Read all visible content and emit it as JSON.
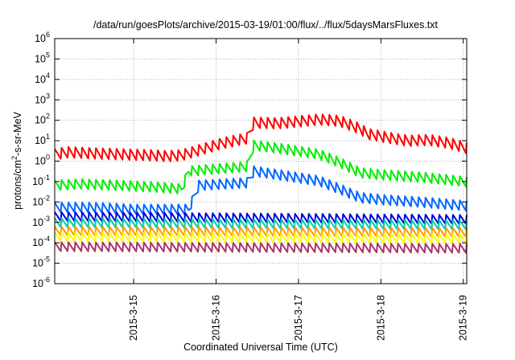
{
  "chart_data": {
    "type": "line",
    "title": "/data/run/goesPlots/archive/2015-03-19/01:00/flux/../flux/5daysMarsFluxes.txt",
    "xlabel": "Coordinated Universal Time (UTC)",
    "ylabel": {
      "prefix": "protons/cm",
      "sup": "2",
      "suffix": "-s-sr-MeV"
    },
    "y_scale": "log",
    "ylim": [
      1e-06,
      1000000.0
    ],
    "y_ticks": [
      {
        "value": 1e-06,
        "base": "10",
        "exp": "-6"
      },
      {
        "value": 1e-05,
        "base": "10",
        "exp": "-5"
      },
      {
        "value": 0.0001,
        "base": "10",
        "exp": "-4"
      },
      {
        "value": 0.001,
        "base": "10",
        "exp": "-3"
      },
      {
        "value": 0.01,
        "base": "10",
        "exp": "-2"
      },
      {
        "value": 0.1,
        "base": "10",
        "exp": "-1"
      },
      {
        "value": 1,
        "base": "10",
        "exp": "0"
      },
      {
        "value": 10,
        "base": "10",
        "exp": "1"
      },
      {
        "value": 100,
        "base": "10",
        "exp": "2"
      },
      {
        "value": 1000,
        "base": "10",
        "exp": "3"
      },
      {
        "value": 10000,
        "base": "10",
        "exp": "4"
      },
      {
        "value": 100000,
        "base": "10",
        "exp": "5"
      },
      {
        "value": 1000000,
        "base": "10",
        "exp": "6"
      }
    ],
    "xlim": [
      "2015-03-14T01:00",
      "2015-03-19T01:00"
    ],
    "x_ticks": [
      {
        "value": "2015-03-15T00:00",
        "label": "2015-3-15"
      },
      {
        "value": "2015-03-16T00:00",
        "label": "2015-3-16"
      },
      {
        "value": "2015-03-17T00:00",
        "label": "2015-3-17"
      },
      {
        "value": "2015-03-18T00:00",
        "label": "2015-3-18"
      },
      {
        "value": "2015-03-19T00:00",
        "label": "2015-3-19"
      }
    ],
    "grid": true,
    "series": [
      {
        "color": "#ff0000",
        "x": [
          "2015-03-14T01:00",
          "2015-03-14T05:00",
          "2015-03-14T12:00",
          "2015-03-14T20:00",
          "2015-03-15T04:00",
          "2015-03-15T10:00",
          "2015-03-15T14:00",
          "2015-03-15T18:00",
          "2015-03-16T02:00",
          "2015-03-16T09:00",
          "2015-03-16T11:00",
          "2015-03-16T18:00",
          "2015-03-17T06:00",
          "2015-03-17T12:00",
          "2015-03-17T18:00",
          "2015-03-17T20:00",
          "2015-03-18T02:00",
          "2015-03-18T08:00",
          "2015-03-18T14:00",
          "2015-03-18T20:00",
          "2015-03-19T01:00"
        ],
        "y": [
          2,
          2.5,
          2.2,
          2,
          1.8,
          1.6,
          1.8,
          2.8,
          7,
          12,
          70,
          65,
          100,
          85,
          35,
          20,
          13,
          9,
          10,
          7,
          4
        ],
        "sawtooth": 0.6
      },
      {
        "color": "#00ee00",
        "x": [
          "2015-03-14T01:00",
          "2015-03-14T08:00",
          "2015-03-14T20:00",
          "2015-03-15T06:00",
          "2015-03-15T14:00",
          "2015-03-15T16:00",
          "2015-03-16T09:00",
          "2015-03-16T11:00",
          "2015-03-16T18:00",
          "2015-03-17T06:00",
          "2015-03-17T12:00",
          "2015-03-17T18:00",
          "2015-03-18T00:00",
          "2015-03-18T12:00",
          "2015-03-19T01:00"
        ],
        "y": [
          0.06,
          0.07,
          0.06,
          0.05,
          0.04,
          0.3,
          0.5,
          5.5,
          4,
          2,
          0.8,
          0.25,
          0.2,
          0.15,
          0.09
        ],
        "sawtooth": 0.55
      },
      {
        "color": "#0066ff",
        "x": [
          "2015-03-14T01:00",
          "2015-03-14T12:00",
          "2015-03-15T00:00",
          "2015-03-15T12:00",
          "2015-03-15T16:00",
          "2015-03-15T19:00",
          "2015-03-16T09:00",
          "2015-03-16T11:00",
          "2015-03-16T18:00",
          "2015-03-17T06:00",
          "2015-03-17T12:00",
          "2015-03-17T18:00",
          "2015-03-18T00:00",
          "2015-03-18T12:00",
          "2015-03-19T01:00"
        ],
        "y": [
          0.005,
          0.005,
          0.004,
          0.004,
          0.004,
          0.06,
          0.08,
          0.3,
          0.2,
          0.1,
          0.04,
          0.015,
          0.012,
          0.009,
          0.006
        ],
        "sawtooth": 0.55
      },
      {
        "color": "#0000dd",
        "x": [
          "2015-03-14T01:00",
          "2015-03-19T01:00"
        ],
        "y": [
          0.0018,
          0.0013
        ],
        "sawtooth": 0.5
      },
      {
        "color": "#00ccaa",
        "x": [
          "2015-03-14T01:00",
          "2015-03-19T01:00"
        ],
        "y": [
          0.0009,
          0.0007
        ],
        "sawtooth": 0.5
      },
      {
        "color": "#ff9900",
        "x": [
          "2015-03-14T01:00",
          "2015-03-19T01:00"
        ],
        "y": [
          0.00035,
          0.0003
        ],
        "sawtooth": 0.5
      },
      {
        "color": "#ffff00",
        "x": [
          "2015-03-14T01:00",
          "2015-03-19T01:00"
        ],
        "y": [
          0.00018,
          0.00015
        ],
        "sawtooth": 0.5
      },
      {
        "color": "#aa3366",
        "x": [
          "2015-03-14T01:00",
          "2015-03-19T01:00"
        ],
        "y": [
          6e-05,
          5e-05
        ],
        "sawtooth": 0.5
      }
    ]
  }
}
